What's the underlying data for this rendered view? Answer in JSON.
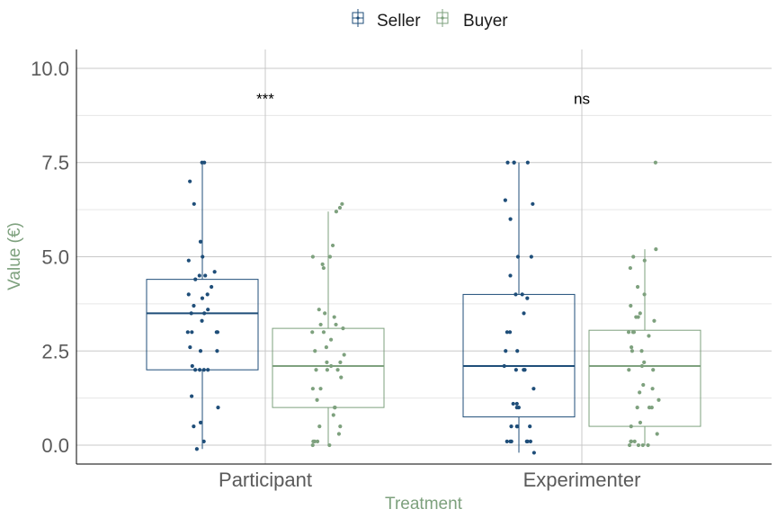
{
  "chart_data": {
    "type": "boxplot",
    "xlabel": "Treatment",
    "ylabel": "Value (€)",
    "categories": [
      "Participant",
      "Experimenter"
    ],
    "ylim": [
      -0.5,
      10.5
    ],
    "yticks": [
      "0.0",
      "2.5",
      "5.0",
      "7.5",
      "10.0"
    ],
    "ytick_values": [
      0,
      2.5,
      5,
      7.5,
      10
    ],
    "legend_position": "top",
    "grid": true,
    "series": [
      {
        "name": "Seller",
        "color": "#1f4e79",
        "boxes": [
          {
            "category": "Participant",
            "min": -0.1,
            "q1": 2.0,
            "median": 3.5,
            "q3": 4.4,
            "max": 7.5,
            "points": [
              7.5,
              7.5,
              7.0,
              6.4,
              5.4,
              5.0,
              4.9,
              4.6,
              4.5,
              4.5,
              4.4,
              4.2,
              4.0,
              4.0,
              3.9,
              3.7,
              3.6,
              3.5,
              3.5,
              3.3,
              3.0,
              3.0,
              3.0,
              3.0,
              2.6,
              2.5,
              2.5,
              2.1,
              2.0,
              2.0,
              2.0,
              2.0,
              1.3,
              1.0,
              0.6,
              0.5,
              0.1,
              -0.1
            ]
          },
          {
            "category": "Experimenter",
            "min": -0.2,
            "q1": 0.75,
            "median": 2.1,
            "q3": 4.0,
            "max": 7.5,
            "points": [
              7.5,
              7.5,
              7.5,
              7.5,
              6.5,
              6.4,
              6.0,
              5.0,
              5.0,
              4.5,
              4.0,
              4.0,
              3.9,
              3.5,
              3.0,
              3.0,
              2.5,
              2.5,
              2.1,
              2.0,
              2.0,
              2.0,
              1.5,
              1.1,
              1.1,
              1.0,
              1.0,
              0.5,
              0.5,
              0.5,
              0.5,
              0.1,
              0.1,
              0.1,
              0.1,
              0.1,
              0.1,
              -0.2
            ]
          }
        ]
      },
      {
        "name": "Buyer",
        "color": "#7ea17e",
        "boxes": [
          {
            "category": "Participant",
            "min": 0.0,
            "q1": 1.0,
            "median": 2.1,
            "q3": 3.1,
            "max": 6.2,
            "points": [
              6.4,
              6.3,
              6.2,
              5.3,
              5.0,
              5.0,
              4.8,
              4.7,
              3.6,
              3.5,
              3.4,
              3.2,
              3.2,
              3.1,
              3.0,
              3.0,
              2.8,
              2.6,
              2.5,
              2.4,
              2.2,
              2.2,
              2.1,
              2.0,
              2.0,
              2.0,
              1.8,
              1.5,
              1.5,
              1.2,
              1.0,
              1.0,
              0.8,
              0.5,
              0.5,
              0.3,
              0.1,
              0.1,
              0.1,
              0.0,
              0.0
            ]
          },
          {
            "category": "Experimenter",
            "min": 0.0,
            "q1": 0.5,
            "median": 2.1,
            "q3": 3.05,
            "max": 5.2,
            "points": [
              7.5,
              5.2,
              5.0,
              4.9,
              4.7,
              4.2,
              4.0,
              3.7,
              3.5,
              3.4,
              3.4,
              3.3,
              3.0,
              3.0,
              3.0,
              2.9,
              2.6,
              2.5,
              2.5,
              2.2,
              2.1,
              2.0,
              2.0,
              1.6,
              1.5,
              1.4,
              1.2,
              1.0,
              1.0,
              1.0,
              0.6,
              0.5,
              0.3,
              0.1,
              0.1,
              0.1,
              0.0,
              0.0,
              0.0,
              0.0
            ]
          }
        ]
      }
    ],
    "annotations": [
      {
        "category": "Participant",
        "text": "***",
        "y": 9.2
      },
      {
        "category": "Experimenter",
        "text": "ns",
        "y": 9.2
      }
    ]
  }
}
